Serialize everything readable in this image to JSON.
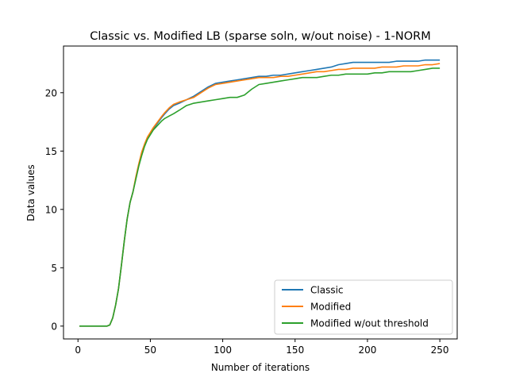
{
  "chart_data": {
    "type": "line",
    "title": "Classic vs. Modified LB (sparse soln, w/out noise) - 1-NORM",
    "xlabel": "Number of iterations",
    "ylabel": "Data values",
    "xlim": [
      -10,
      262
    ],
    "ylim": [
      -1.1,
      24.0
    ],
    "xticks": [
      0,
      50,
      100,
      150,
      200,
      250
    ],
    "yticks": [
      0,
      5,
      10,
      15,
      20
    ],
    "grid": false,
    "legend_position": "lower-right",
    "x": [
      1,
      10,
      20,
      22,
      24,
      26,
      28,
      30,
      32,
      34,
      36,
      38,
      40,
      42,
      44,
      46,
      48,
      50,
      52,
      55,
      58,
      60,
      63,
      66,
      70,
      75,
      80,
      85,
      90,
      95,
      100,
      105,
      110,
      115,
      120,
      125,
      130,
      135,
      140,
      145,
      150,
      155,
      160,
      165,
      170,
      175,
      180,
      185,
      190,
      195,
      200,
      205,
      210,
      215,
      220,
      225,
      230,
      235,
      240,
      245,
      250
    ],
    "series": [
      {
        "name": "Classic",
        "color": "#1f77b4",
        "values": [
          0,
          0,
          0,
          0.1,
          0.7,
          1.8,
          3.2,
          5.2,
          7.3,
          9.2,
          10.6,
          11.5,
          12.7,
          13.8,
          14.8,
          15.5,
          16.1,
          16.5,
          16.9,
          17.4,
          17.9,
          18.2,
          18.6,
          18.9,
          19.1,
          19.4,
          19.7,
          20.1,
          20.5,
          20.8,
          20.9,
          21.0,
          21.1,
          21.2,
          21.3,
          21.4,
          21.4,
          21.5,
          21.5,
          21.6,
          21.7,
          21.8,
          21.9,
          22.0,
          22.1,
          22.2,
          22.4,
          22.5,
          22.6,
          22.6,
          22.6,
          22.6,
          22.6,
          22.6,
          22.7,
          22.7,
          22.7,
          22.7,
          22.8,
          22.8,
          22.8
        ]
      },
      {
        "name": "Modified",
        "color": "#ff7f0e",
        "values": [
          0,
          0,
          0,
          0.1,
          0.7,
          1.8,
          3.2,
          5.2,
          7.3,
          9.2,
          10.6,
          11.5,
          12.8,
          13.9,
          14.9,
          15.6,
          16.2,
          16.6,
          17.0,
          17.5,
          18.0,
          18.3,
          18.7,
          19.0,
          19.2,
          19.4,
          19.6,
          20.0,
          20.4,
          20.7,
          20.8,
          20.9,
          21.0,
          21.1,
          21.2,
          21.3,
          21.3,
          21.3,
          21.4,
          21.4,
          21.5,
          21.6,
          21.7,
          21.8,
          21.8,
          21.9,
          22.0,
          22.0,
          22.1,
          22.1,
          22.1,
          22.1,
          22.2,
          22.2,
          22.2,
          22.3,
          22.3,
          22.3,
          22.4,
          22.4,
          22.5
        ]
      },
      {
        "name": "Modified w/out threshold",
        "color": "#2ca02c",
        "values": [
          0,
          0,
          0,
          0.1,
          0.7,
          1.8,
          3.2,
          5.2,
          7.3,
          9.2,
          10.6,
          11.5,
          12.6,
          13.7,
          14.6,
          15.4,
          16.0,
          16.4,
          16.8,
          17.2,
          17.6,
          17.8,
          18.0,
          18.2,
          18.5,
          18.9,
          19.1,
          19.2,
          19.3,
          19.4,
          19.5,
          19.6,
          19.6,
          19.8,
          20.3,
          20.7,
          20.8,
          20.9,
          21.0,
          21.1,
          21.2,
          21.3,
          21.3,
          21.3,
          21.4,
          21.5,
          21.5,
          21.6,
          21.6,
          21.6,
          21.6,
          21.7,
          21.7,
          21.8,
          21.8,
          21.8,
          21.8,
          21.9,
          22.0,
          22.1,
          22.1
        ]
      }
    ]
  }
}
